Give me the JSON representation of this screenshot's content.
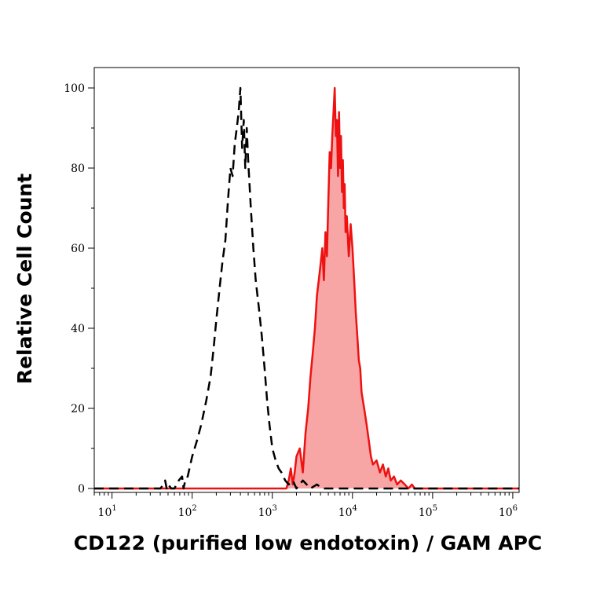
{
  "chart_data": {
    "type": "area",
    "title": "",
    "xlabel": "CD122 (purified low endotoxin) / GAM APC",
    "ylabel": "Relative Cell Count",
    "x_scale": "log",
    "xlim": [
      6,
      1200000
    ],
    "ylim": [
      0,
      100
    ],
    "x_ticks": [
      {
        "value": 10,
        "base": "10",
        "exp": "1"
      },
      {
        "value": 100,
        "base": "10",
        "exp": "2"
      },
      {
        "value": 1000,
        "base": "10",
        "exp": "3"
      },
      {
        "value": 10000,
        "base": "10",
        "exp": "4"
      },
      {
        "value": 100000,
        "base": "10",
        "exp": "5"
      },
      {
        "value": 1000000,
        "base": "10",
        "exp": "6"
      }
    ],
    "y_ticks": [
      0,
      20,
      40,
      60,
      80,
      100
    ],
    "grid": false,
    "legend": "none",
    "series": [
      {
        "style": "dashed",
        "color": "#000000",
        "x": [
          6,
          40,
          44,
          46,
          48,
          50,
          55,
          60,
          68,
          75,
          78,
          82,
          88,
          100,
          115,
          130,
          150,
          170,
          185,
          200,
          220,
          240,
          260,
          280,
          300,
          320,
          340,
          360,
          380,
          400,
          420,
          440,
          460,
          480,
          500,
          540,
          580,
          620,
          680,
          740,
          800,
          860,
          920,
          1000,
          1100,
          1200,
          1300,
          1450,
          1600,
          1800,
          2000,
          2400,
          3000,
          3600,
          4200,
          5000,
          6000,
          8000,
          20000,
          1200000
        ],
        "y": [
          0,
          0,
          1,
          2,
          0,
          1,
          0,
          0,
          2,
          3,
          0,
          2,
          3,
          8,
          12,
          16,
          22,
          28,
          35,
          42,
          50,
          57,
          62,
          72,
          80,
          78,
          86,
          90,
          94,
          100,
          85,
          92,
          80,
          90,
          82,
          70,
          60,
          52,
          45,
          38,
          30,
          22,
          16,
          10,
          7,
          5,
          4,
          2,
          1,
          2,
          0,
          2,
          0,
          1,
          0,
          0,
          0,
          0,
          0,
          0
        ]
      },
      {
        "style": "filled",
        "color": "#ee1111",
        "fill": "#f8a5a5",
        "x": [
          6,
          1500,
          1600,
          1700,
          1800,
          1900,
          2000,
          2200,
          2400,
          2600,
          2800,
          3000,
          3200,
          3400,
          3600,
          3800,
          4000,
          4200,
          4400,
          4600,
          4800,
          5000,
          5200,
          5400,
          5600,
          5800,
          6000,
          6200,
          6400,
          6600,
          6800,
          7000,
          7200,
          7400,
          7600,
          7800,
          8000,
          8200,
          8500,
          9000,
          9500,
          10000,
          10500,
          11000,
          11500,
          12000,
          12500,
          13000,
          14000,
          15000,
          16000,
          17000,
          18000,
          20000,
          22000,
          24000,
          26000,
          28000,
          30000,
          33000,
          36000,
          40000,
          45000,
          50000,
          55000,
          60000,
          1200000
        ],
        "y": [
          0,
          0,
          2,
          5,
          1,
          4,
          8,
          10,
          4,
          14,
          20,
          28,
          34,
          40,
          48,
          52,
          56,
          60,
          52,
          64,
          58,
          72,
          84,
          80,
          88,
          94,
          100,
          88,
          92,
          78,
          94,
          80,
          88,
          74,
          82,
          70,
          76,
          64,
          68,
          58,
          66,
          60,
          52,
          44,
          38,
          32,
          30,
          24,
          20,
          16,
          12,
          8,
          6,
          7,
          4,
          6,
          3,
          5,
          2,
          3,
          1,
          2,
          1,
          0,
          1,
          0,
          0
        ]
      }
    ]
  }
}
